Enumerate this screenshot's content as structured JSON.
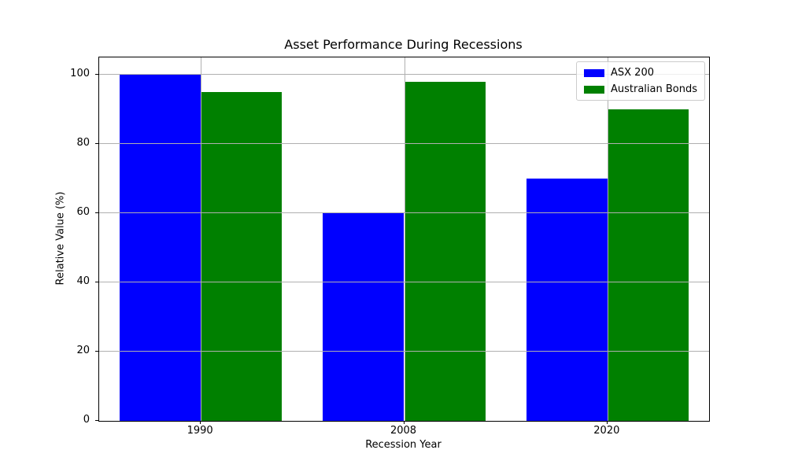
{
  "figure": {
    "background": "#ffffff"
  },
  "chart_data": {
    "type": "bar",
    "title": "Asset Performance During Recessions",
    "xlabel": "Recession Year",
    "ylabel": "Relative Value (%)",
    "categories": [
      "1990",
      "2008",
      "2020"
    ],
    "series": [
      {
        "name": "ASX 200",
        "color": "#0000ff",
        "values": [
          100,
          60,
          70
        ]
      },
      {
        "name": "Australian Bonds",
        "color": "#008000",
        "values": [
          95,
          98,
          90
        ]
      }
    ],
    "ylim": [
      0,
      105
    ],
    "yticks": [
      0,
      20,
      40,
      60,
      80,
      100
    ],
    "bar_width_fraction": 0.4,
    "grid": true,
    "grid_color": "#b0b0b0",
    "grid_above_bars": true,
    "legend_position": "upper right"
  }
}
